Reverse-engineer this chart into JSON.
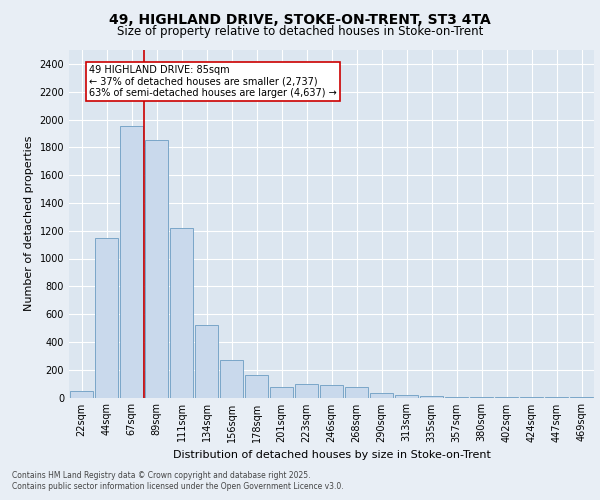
{
  "title_line1": "49, HIGHLAND DRIVE, STOKE-ON-TRENT, ST3 4TA",
  "title_line2": "Size of property relative to detached houses in Stoke-on-Trent",
  "xlabel": "Distribution of detached houses by size in Stoke-on-Trent",
  "ylabel": "Number of detached properties",
  "bar_labels": [
    "22sqm",
    "44sqm",
    "67sqm",
    "89sqm",
    "111sqm",
    "134sqm",
    "156sqm",
    "178sqm",
    "201sqm",
    "223sqm",
    "246sqm",
    "268sqm",
    "290sqm",
    "313sqm",
    "335sqm",
    "357sqm",
    "380sqm",
    "402sqm",
    "424sqm",
    "447sqm",
    "469sqm"
  ],
  "bar_values": [
    50,
    1150,
    1950,
    1850,
    1220,
    520,
    270,
    160,
    75,
    100,
    90,
    75,
    30,
    15,
    10,
    5,
    5,
    5,
    3,
    3,
    2
  ],
  "bar_color": "#c9d9ec",
  "bar_edge_color": "#7aa6c8",
  "ylim": [
    0,
    2500
  ],
  "yticks": [
    0,
    200,
    400,
    600,
    800,
    1000,
    1200,
    1400,
    1600,
    1800,
    2000,
    2200,
    2400
  ],
  "vline_color": "#cc0000",
  "annotation_text_line1": "49 HIGHLAND DRIVE: 85sqm",
  "annotation_text_line2": "← 37% of detached houses are smaller (2,737)",
  "annotation_text_line3": "63% of semi-detached houses are larger (4,637) →",
  "footnote1": "Contains HM Land Registry data © Crown copyright and database right 2025.",
  "footnote2": "Contains public sector information licensed under the Open Government Licence v3.0.",
  "background_color": "#e8eef5",
  "plot_bg_color": "#dce6f0",
  "title_fontsize": 10,
  "subtitle_fontsize": 8.5,
  "ylabel_fontsize": 8,
  "xlabel_fontsize": 8,
  "tick_fontsize": 7,
  "annot_fontsize": 7
}
